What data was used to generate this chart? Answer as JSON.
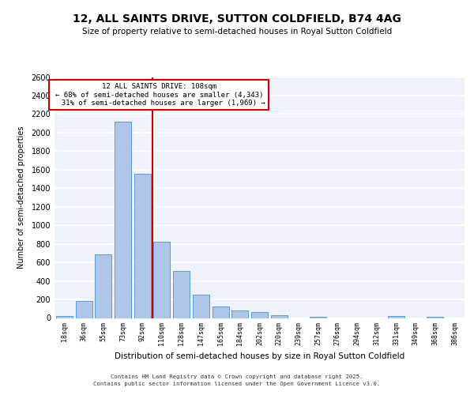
{
  "title": "12, ALL SAINTS DRIVE, SUTTON COLDFIELD, B74 4AG",
  "subtitle": "Size of property relative to semi-detached houses in Royal Sutton Coldfield",
  "xlabel": "Distribution of semi-detached houses by size in Royal Sutton Coldfield",
  "ylabel": "Number of semi-detached properties",
  "categories": [
    "18sqm",
    "36sqm",
    "55sqm",
    "73sqm",
    "92sqm",
    "110sqm",
    "128sqm",
    "147sqm",
    "165sqm",
    "184sqm",
    "202sqm",
    "220sqm",
    "239sqm",
    "257sqm",
    "276sqm",
    "294sqm",
    "312sqm",
    "331sqm",
    "349sqm",
    "368sqm",
    "386sqm"
  ],
  "values": [
    20,
    180,
    690,
    2120,
    1560,
    820,
    510,
    250,
    125,
    80,
    60,
    30,
    0,
    15,
    0,
    0,
    0,
    20,
    0,
    15,
    0
  ],
  "bar_color": "#aec6e8",
  "bar_edge_color": "#5b9bd5",
  "smaller_pct": "68%",
  "smaller_count": "4,343",
  "larger_pct": "31%",
  "larger_count": "1,969",
  "vline_color": "#cc0000",
  "ann_box_color": "#cc0000",
  "ylim": [
    0,
    2600
  ],
  "yticks": [
    0,
    200,
    400,
    600,
    800,
    1000,
    1200,
    1400,
    1600,
    1800,
    2000,
    2200,
    2400,
    2600
  ],
  "background_color": "#eef2fb",
  "grid_color": "#ffffff",
  "footer_line1": "Contains HM Land Registry data © Crown copyright and database right 2025.",
  "footer_line2": "Contains public sector information licensed under the Open Government Licence v3.0."
}
